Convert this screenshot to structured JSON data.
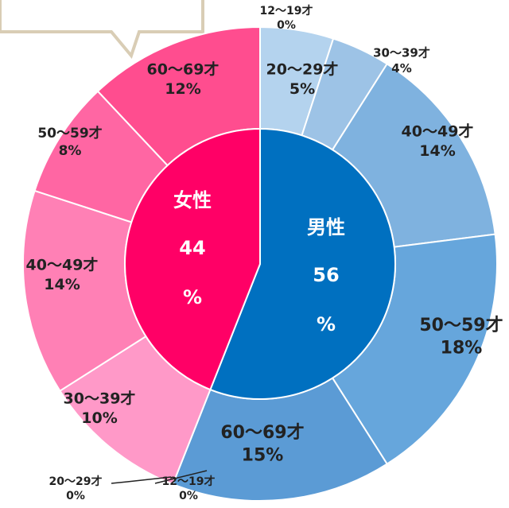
{
  "chart_data": {
    "type": "sunburst",
    "unit": "%",
    "inner": {
      "categories": [
        "男性",
        "女性"
      ],
      "values": [
        56,
        44
      ],
      "colors": [
        "#0070c0",
        "#ff0066"
      ]
    },
    "outer": {
      "categories": [
        "12〜19才",
        "20〜29才",
        "30〜39才",
        "40〜49才",
        "50〜59才",
        "60〜69才",
        "12〜19才",
        "20〜29才",
        "30〜39才",
        "40〜49才",
        "50〜59才",
        "60〜69才"
      ],
      "values": [
        0,
        5,
        4,
        14,
        18,
        15,
        0,
        0,
        10,
        14,
        8,
        12
      ],
      "value_labels": [
        "0%",
        "5%",
        "4%",
        "14%",
        "18%",
        "15%",
        "0%",
        "0%",
        "10%",
        "14%",
        "8%",
        "12%"
      ],
      "colors": [
        "#bdd7ee",
        "#b4d3ee",
        "#9dc3e6",
        "#7fb2df",
        "#66a6dc",
        "#5b9bd5",
        "#ffd1e3",
        "#ffb8d5",
        "#ff99c8",
        "#ff80b5",
        "#ff66a3",
        "#ff4d8f"
      ]
    }
  }
}
